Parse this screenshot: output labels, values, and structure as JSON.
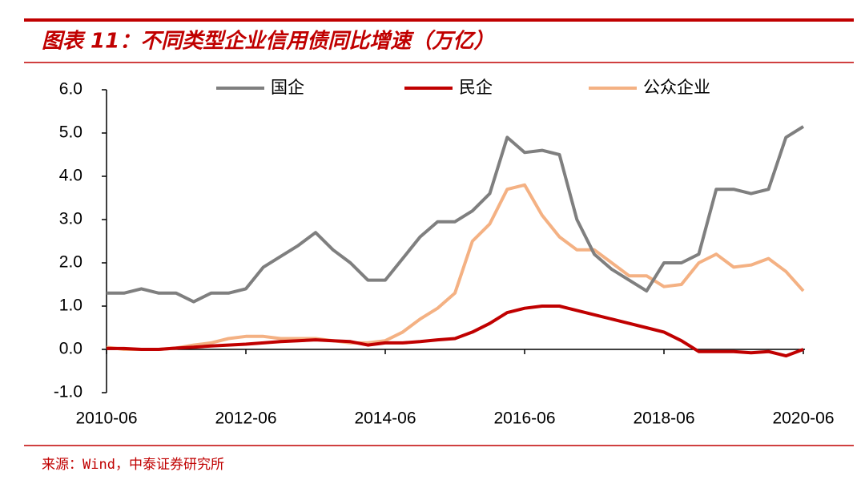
{
  "chart_data": {
    "type": "line",
    "title": "图表 11：不同类型企业信用债同比增速（万亿）",
    "source": "来源：Wind，中泰证券研究所",
    "x": [
      "2010-06",
      "2010-09",
      "2010-12",
      "2011-03",
      "2011-06",
      "2011-09",
      "2011-12",
      "2012-03",
      "2012-06",
      "2012-09",
      "2012-12",
      "2013-03",
      "2013-06",
      "2013-09",
      "2013-12",
      "2014-03",
      "2014-06",
      "2014-09",
      "2014-12",
      "2015-03",
      "2015-06",
      "2015-09",
      "2015-12",
      "2016-03",
      "2016-06",
      "2016-09",
      "2016-12",
      "2017-03",
      "2017-06",
      "2017-09",
      "2017-12",
      "2018-03",
      "2018-06",
      "2018-09",
      "2018-12",
      "2019-03",
      "2019-06",
      "2019-09",
      "2019-12",
      "2020-03",
      "2020-06"
    ],
    "series": [
      {
        "name": "国企",
        "color": "#7f7f7f",
        "values": [
          1.3,
          1.3,
          1.4,
          1.3,
          1.3,
          1.1,
          1.3,
          1.3,
          1.4,
          1.9,
          2.15,
          2.4,
          2.7,
          2.3,
          2.0,
          1.6,
          1.6,
          2.1,
          2.6,
          2.95,
          2.95,
          3.2,
          3.6,
          4.9,
          4.55,
          4.6,
          4.5,
          3.0,
          2.2,
          1.85,
          1.6,
          1.35,
          2.0,
          2.0,
          2.2,
          3.7,
          3.7,
          3.6,
          3.7,
          4.9,
          5.15
        ]
      },
      {
        "name": "民企",
        "color": "#c00000",
        "values": [
          0.02,
          0.02,
          0.0,
          0.0,
          0.03,
          0.05,
          0.08,
          0.1,
          0.12,
          0.15,
          0.18,
          0.2,
          0.22,
          0.2,
          0.18,
          0.1,
          0.15,
          0.15,
          0.18,
          0.22,
          0.25,
          0.4,
          0.6,
          0.85,
          0.95,
          1.0,
          1.0,
          0.9,
          0.8,
          0.7,
          0.6,
          0.5,
          0.4,
          0.2,
          -0.05,
          -0.05,
          -0.05,
          -0.08,
          -0.05,
          -0.15,
          0.0
        ]
      },
      {
        "name": "公众企业",
        "color": "#f4b183",
        "values": [
          0.05,
          0.0,
          0.0,
          0.0,
          0.03,
          0.1,
          0.15,
          0.25,
          0.3,
          0.3,
          0.25,
          0.25,
          0.25,
          0.2,
          0.15,
          0.15,
          0.2,
          0.4,
          0.7,
          0.95,
          1.3,
          2.5,
          2.9,
          3.7,
          3.8,
          3.1,
          2.6,
          2.3,
          2.3,
          2.0,
          1.7,
          1.7,
          1.45,
          1.5,
          2.0,
          2.2,
          1.9,
          1.95,
          2.1,
          1.8,
          1.35
        ]
      }
    ],
    "xlim": [
      "2010-06",
      "2020-06"
    ],
    "xticks": [
      "2010-06",
      "2012-06",
      "2014-06",
      "2016-06",
      "2018-06",
      "2020-06"
    ],
    "ylim": [
      -1,
      6
    ],
    "yticks": [
      {
        "value": -1,
        "label": "-1.0"
      },
      {
        "value": 0,
        "label": "0.0"
      },
      {
        "value": 1,
        "label": "1.0"
      },
      {
        "value": 2,
        "label": "2.0"
      },
      {
        "value": 3,
        "label": "3.0"
      },
      {
        "value": 4,
        "label": "4.0"
      },
      {
        "value": 5,
        "label": "5.0"
      },
      {
        "value": 6,
        "label": "6.0"
      }
    ],
    "grid": false
  }
}
